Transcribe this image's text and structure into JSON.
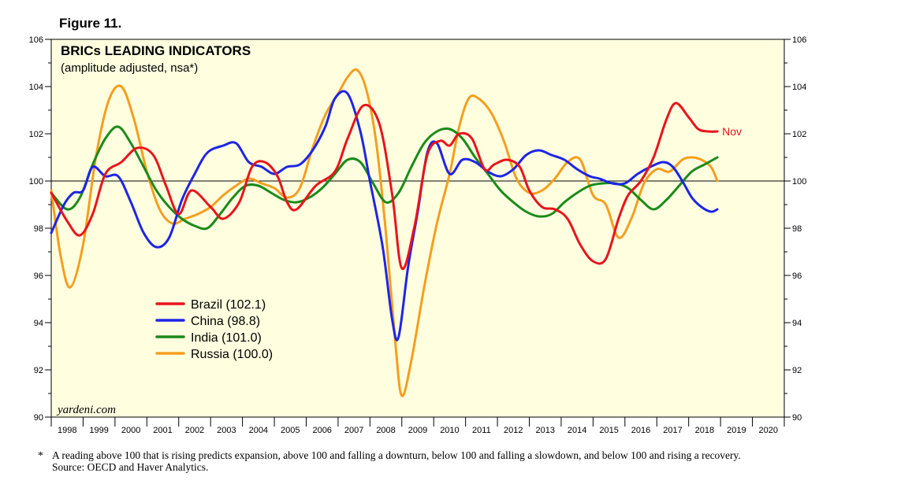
{
  "figure_label": "Figure 11.",
  "watermark": "yardeni.com",
  "footnote": {
    "marker": "*",
    "text": "A reading above 100 that is rising predicts expansion, above 100 and falling a downturn, below 100 and falling a slowdown, and below 100 and rising a recovery.",
    "source": "Source: OECD and Haver Analytics."
  },
  "colors": {
    "plot_background": "#FFFFE0",
    "Brazil": "#E8141C",
    "China": "#1E24E6",
    "India": "#1A8A1A",
    "Russia": "#F59E1E"
  },
  "chart_data": {
    "type": "line",
    "title": "BRICs LEADING INDICATORS",
    "subtitle": "(amplitude adjusted, nsa*)",
    "xlabel": "",
    "ylabel": "",
    "xlim": [
      1998,
      2021
    ],
    "ylim": [
      90,
      106
    ],
    "yticks": [
      90,
      92,
      94,
      96,
      98,
      100,
      102,
      104,
      106
    ],
    "xtick_labels": [
      "1998",
      "1999",
      "2000",
      "2001",
      "2002",
      "2003",
      "2004",
      "2005",
      "2006",
      "2007",
      "2008",
      "2009",
      "2010",
      "2011",
      "2012",
      "2013",
      "2014",
      "2015",
      "2016",
      "2017",
      "2018",
      "2019",
      "2020"
    ],
    "reference_line": 100,
    "annotation": {
      "text": "Nov",
      "series": "Brazil",
      "x": 2018.9,
      "y": 102.1
    },
    "legend_position": "center-left",
    "series": [
      {
        "name": "Brazil",
        "label": "Brazil (102.1)",
        "x": [
          1998.0,
          1998.5,
          1998.9,
          1999.3,
          1999.7,
          2000.2,
          2000.7,
          2001.2,
          2001.6,
          2002.0,
          2002.4,
          2003.0,
          2003.4,
          2003.9,
          2004.3,
          2004.7,
          2005.1,
          2005.4,
          2005.7,
          2006.3,
          2006.9,
          2007.3,
          2007.8,
          2008.3,
          2008.7,
          2009.0,
          2009.4,
          2009.8,
          2010.2,
          2010.5,
          2010.8,
          2011.2,
          2011.6,
          2011.9,
          2012.3,
          2012.7,
          2013.0,
          2013.4,
          2013.8,
          2014.2,
          2014.6,
          2015.0,
          2015.4,
          2015.8,
          2016.1,
          2016.5,
          2016.9,
          2017.3,
          2017.6,
          2018.0,
          2018.3,
          2018.6,
          2018.9
        ],
        "values": [
          99.5,
          98.3,
          97.7,
          98.6,
          100.3,
          100.8,
          101.4,
          101.1,
          99.8,
          98.6,
          99.6,
          98.9,
          98.4,
          99.1,
          100.6,
          100.8,
          100.2,
          99.1,
          98.8,
          99.8,
          100.4,
          101.8,
          103.2,
          102.4,
          99.4,
          96.3,
          98.1,
          101.1,
          101.7,
          101.5,
          102.0,
          101.8,
          100.5,
          100.7,
          100.9,
          100.6,
          99.6,
          98.9,
          98.8,
          98.4,
          97.3,
          96.6,
          96.7,
          98.4,
          99.4,
          100.0,
          101.0,
          102.6,
          103.3,
          102.7,
          102.2,
          102.1,
          102.1
        ]
      },
      {
        "name": "China",
        "label": "China (98.8)",
        "x": [
          1998.0,
          1998.4,
          1998.7,
          1999.0,
          1999.3,
          1999.7,
          2000.1,
          2000.5,
          2000.9,
          2001.3,
          2001.7,
          2002.1,
          2002.5,
          2002.9,
          2003.4,
          2003.8,
          2004.2,
          2004.6,
          2005.0,
          2005.4,
          2005.8,
          2006.2,
          2006.6,
          2006.9,
          2007.3,
          2007.7,
          2008.0,
          2008.4,
          2008.7,
          2008.9,
          2009.2,
          2009.5,
          2009.8,
          2010.1,
          2010.5,
          2010.9,
          2011.3,
          2011.7,
          2012.1,
          2012.5,
          2012.9,
          2013.3,
          2013.7,
          2014.1,
          2014.5,
          2014.9,
          2015.2,
          2015.6,
          2016.0,
          2016.4,
          2016.8,
          2017.2,
          2017.5,
          2017.8,
          2018.1,
          2018.4,
          2018.7,
          2018.9
        ],
        "values": [
          97.8,
          99.0,
          99.5,
          99.6,
          100.6,
          100.2,
          100.2,
          99.1,
          97.8,
          97.2,
          97.6,
          99.2,
          100.3,
          101.2,
          101.5,
          101.6,
          100.8,
          100.6,
          100.3,
          100.6,
          100.7,
          101.3,
          102.3,
          103.5,
          103.7,
          102.1,
          100.0,
          97.2,
          94.1,
          93.4,
          96.4,
          98.7,
          101.2,
          101.6,
          100.3,
          100.9,
          100.8,
          100.4,
          100.2,
          100.5,
          101.1,
          101.3,
          101.1,
          100.9,
          100.5,
          100.2,
          100.1,
          99.9,
          99.9,
          100.3,
          100.6,
          100.8,
          100.6,
          100.0,
          99.3,
          98.9,
          98.7,
          98.8
        ]
      },
      {
        "name": "India",
        "label": "India (101.0)",
        "x": [
          1998.0,
          1998.5,
          1998.9,
          1999.3,
          1999.7,
          2000.1,
          2000.5,
          2000.9,
          2001.3,
          2001.7,
          2002.1,
          2002.5,
          2002.9,
          2003.3,
          2003.7,
          2004.1,
          2004.5,
          2004.9,
          2005.3,
          2005.7,
          2006.1,
          2006.5,
          2006.9,
          2007.3,
          2007.7,
          2008.1,
          2008.5,
          2008.9,
          2009.3,
          2009.7,
          2010.1,
          2010.5,
          2010.9,
          2011.3,
          2011.7,
          2012.1,
          2012.5,
          2012.9,
          2013.3,
          2013.7,
          2014.1,
          2014.5,
          2014.9,
          2015.3,
          2015.7,
          2016.1,
          2016.5,
          2016.9,
          2017.3,
          2017.7,
          2018.1,
          2018.5,
          2018.9
        ],
        "values": [
          99.5,
          98.8,
          99.3,
          100.7,
          101.8,
          102.3,
          101.6,
          100.6,
          99.6,
          98.9,
          98.4,
          98.1,
          98.0,
          98.6,
          99.3,
          99.8,
          99.8,
          99.5,
          99.2,
          99.1,
          99.3,
          99.7,
          100.3,
          100.9,
          100.8,
          99.9,
          99.1,
          99.5,
          100.6,
          101.6,
          102.1,
          102.2,
          101.8,
          101.0,
          100.3,
          99.6,
          99.1,
          98.7,
          98.5,
          98.6,
          99.1,
          99.5,
          99.8,
          99.9,
          99.9,
          99.7,
          99.2,
          98.8,
          99.2,
          99.8,
          100.4,
          100.7,
          101.0
        ]
      },
      {
        "name": "Russia",
        "label": "Russia (100.0)",
        "x": [
          1998.0,
          1998.3,
          1998.6,
          1999.0,
          1999.4,
          1999.8,
          2000.2,
          2000.6,
          2001.0,
          2001.4,
          2001.8,
          2002.2,
          2002.6,
          2003.0,
          2003.4,
          2003.8,
          2004.2,
          2004.6,
          2005.0,
          2005.4,
          2005.8,
          2006.2,
          2006.6,
          2007.0,
          2007.3,
          2007.6,
          2007.9,
          2008.2,
          2008.5,
          2008.8,
          2009.0,
          2009.3,
          2009.7,
          2010.1,
          2010.5,
          2010.8,
          2011.1,
          2011.4,
          2011.8,
          2012.2,
          2012.6,
          2013.0,
          2013.4,
          2013.8,
          2014.2,
          2014.6,
          2015.0,
          2015.4,
          2015.8,
          2016.2,
          2016.6,
          2017.0,
          2017.4,
          2017.8,
          2018.1,
          2018.4,
          2018.7,
          2018.9
        ],
        "values": [
          99.6,
          96.8,
          95.5,
          97.3,
          101.0,
          103.4,
          104.0,
          102.6,
          100.4,
          98.8,
          98.2,
          98.4,
          98.6,
          98.9,
          99.4,
          99.8,
          100.1,
          99.9,
          99.7,
          99.3,
          99.7,
          101.4,
          102.8,
          103.7,
          104.4,
          104.7,
          103.8,
          101.6,
          97.8,
          93.1,
          90.9,
          92.4,
          95.5,
          98.2,
          100.3,
          102.3,
          103.5,
          103.5,
          102.9,
          101.7,
          100.1,
          99.5,
          99.6,
          100.1,
          100.8,
          100.9,
          99.4,
          99.0,
          97.6,
          98.4,
          99.9,
          100.5,
          100.4,
          100.9,
          101.0,
          100.9,
          100.6,
          100.0
        ]
      }
    ]
  }
}
